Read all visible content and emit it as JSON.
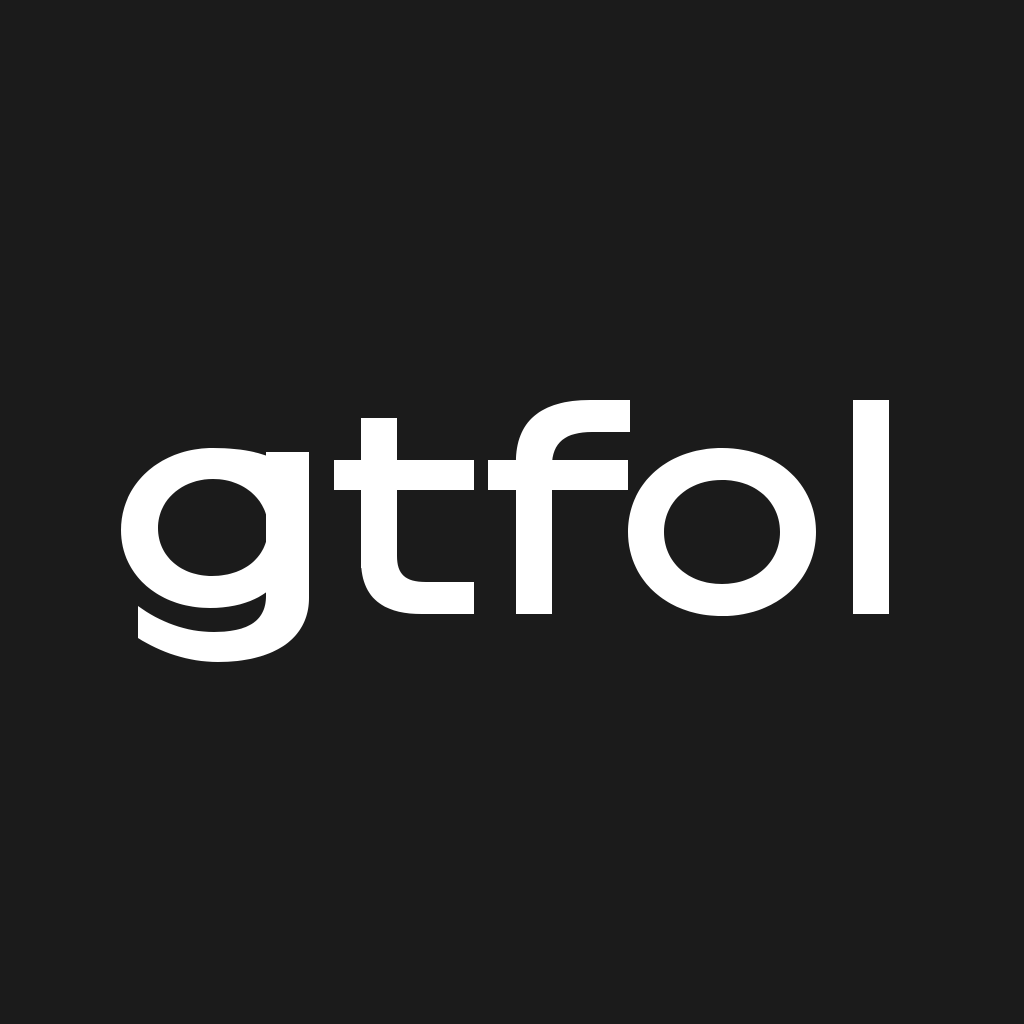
{
  "logo": {
    "wordmark": "gtfol",
    "foreground_color": "#ffffff",
    "background_color": "#1b1b1b"
  }
}
